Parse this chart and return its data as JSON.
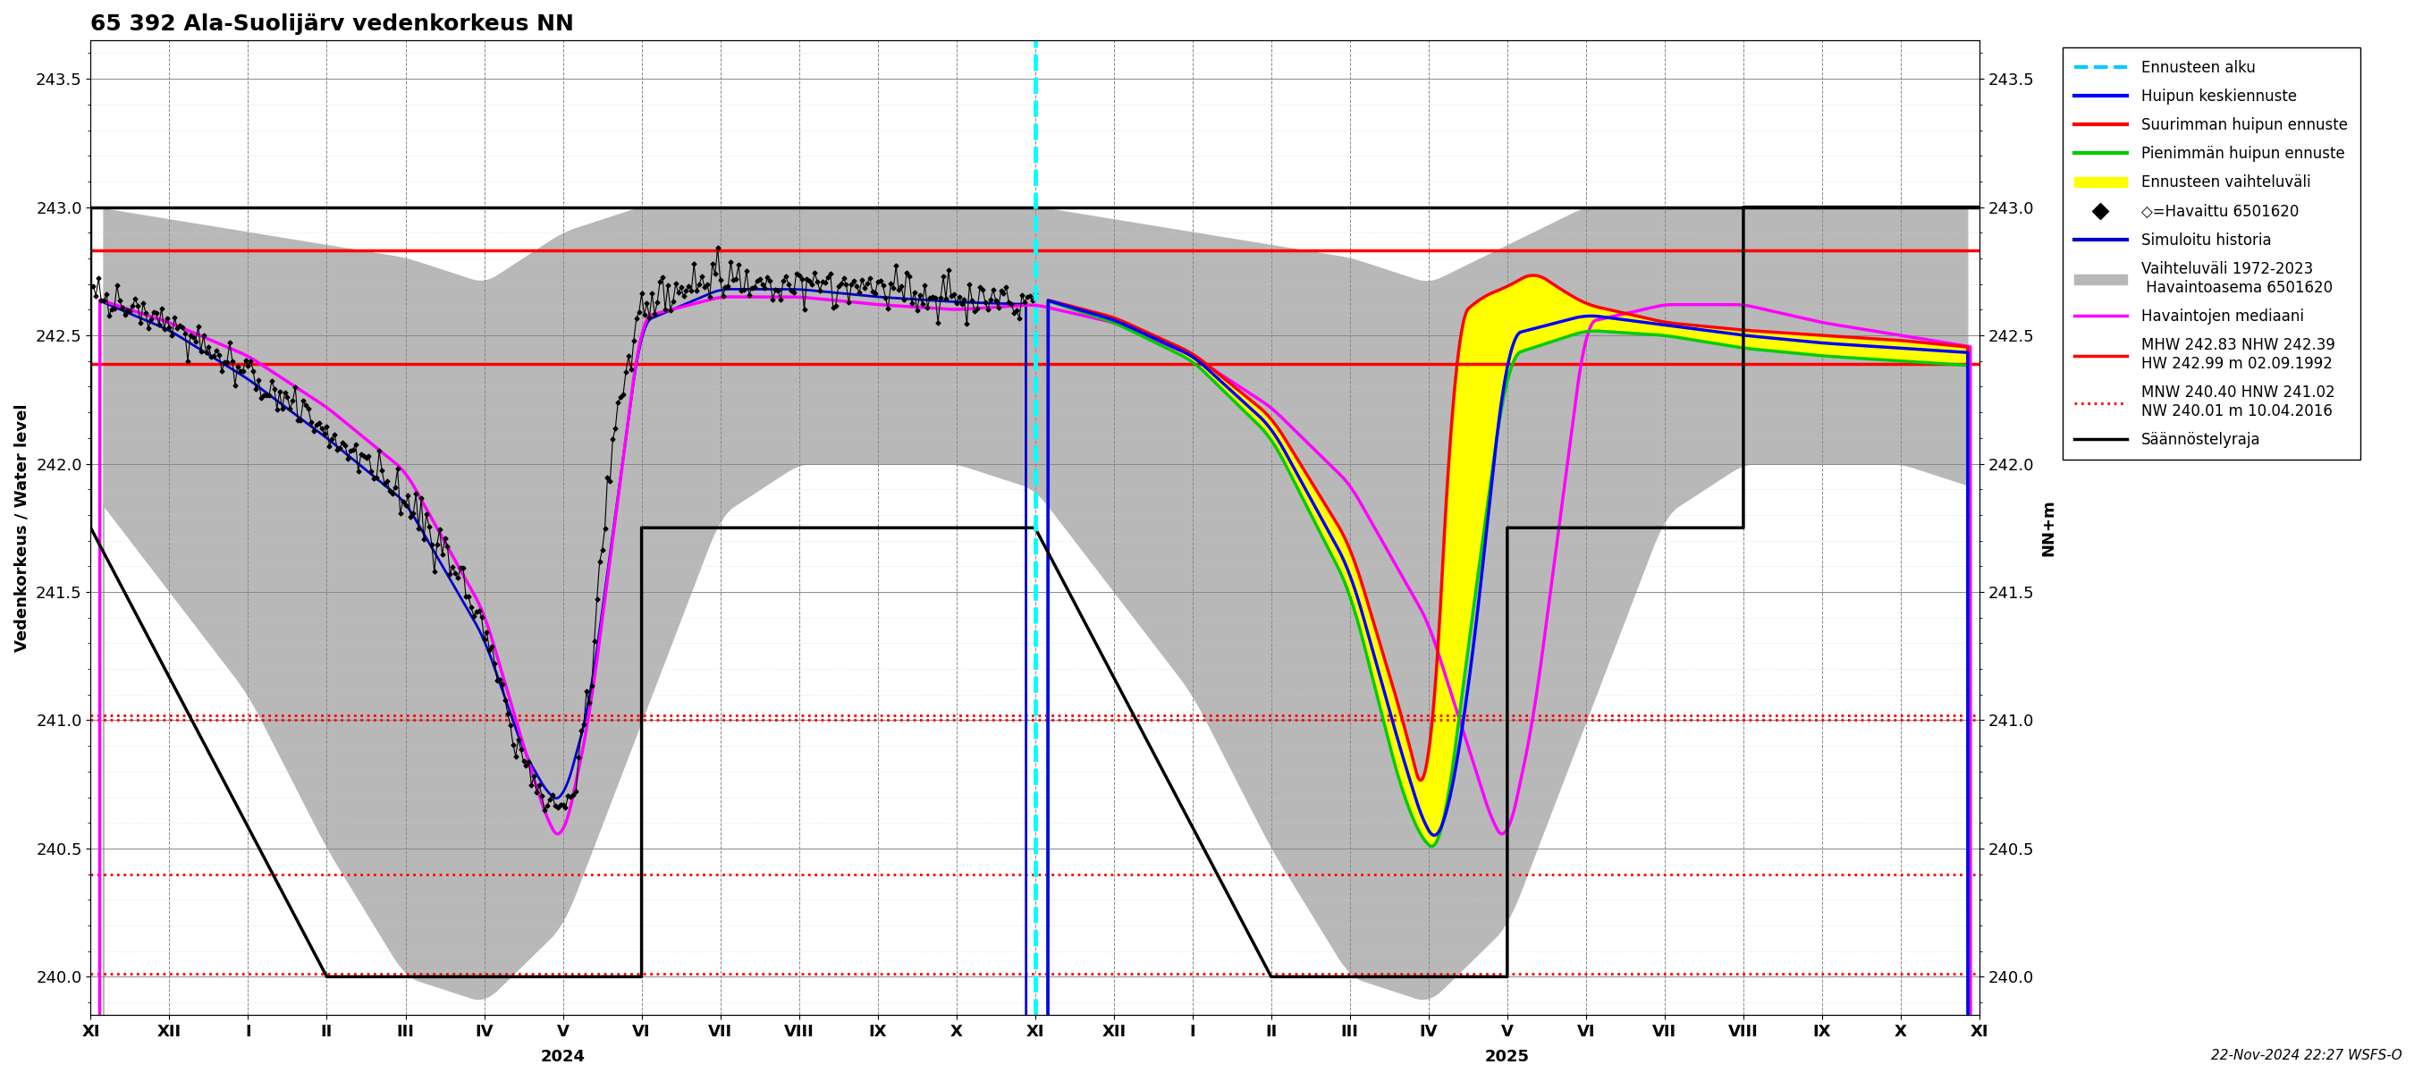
{
  "title": "65 392 Ala-Suolijärv vedenkorkeus NN",
  "ylabel_left": "Vedenkorkeus / Water level",
  "ylabel_right": "NN+m",
  "ylim": [
    239.85,
    243.65
  ],
  "yticks": [
    240.0,
    240.5,
    241.0,
    241.5,
    242.0,
    242.5,
    243.0,
    243.5
  ],
  "footnote": "22-Nov-2024 22:27 WSFS-O",
  "red_solid_lines": [
    242.83,
    242.39
  ],
  "red_dotted_lines": [
    241.02,
    241.0,
    240.4,
    240.01
  ],
  "month_labels": [
    "XI",
    "XII",
    "I",
    "II",
    "III",
    "IV",
    "V",
    "VI",
    "VII",
    "VIII",
    "IX",
    "X",
    "XI",
    "XII",
    "I",
    "II",
    "III",
    "IV",
    "V",
    "VI",
    "VII",
    "VIII",
    "IX",
    "X",
    "XI"
  ],
  "year_labels": [
    "2024",
    "2025"
  ],
  "legend_labels": [
    "Ennusteen alku",
    "Huipun keskiennuste",
    "Suurimman huipun ennuste",
    "Pienimmän huipun ennuste",
    "Ennusteen vaihteluväli",
    "◇=Havaittu 6501620",
    "Simuloitu historia",
    "Vaihteluväli 1972-2023\n Havaintoasema 6501620",
    "Havaintojen mediaani",
    "MHW 242.83 NHW 242.39\nHW 242.99 m 02.09.1992",
    "MNW 240.40 HNW 241.02\nNW 240.01 m 10.04.2016",
    "Säännöstelyraja"
  ]
}
